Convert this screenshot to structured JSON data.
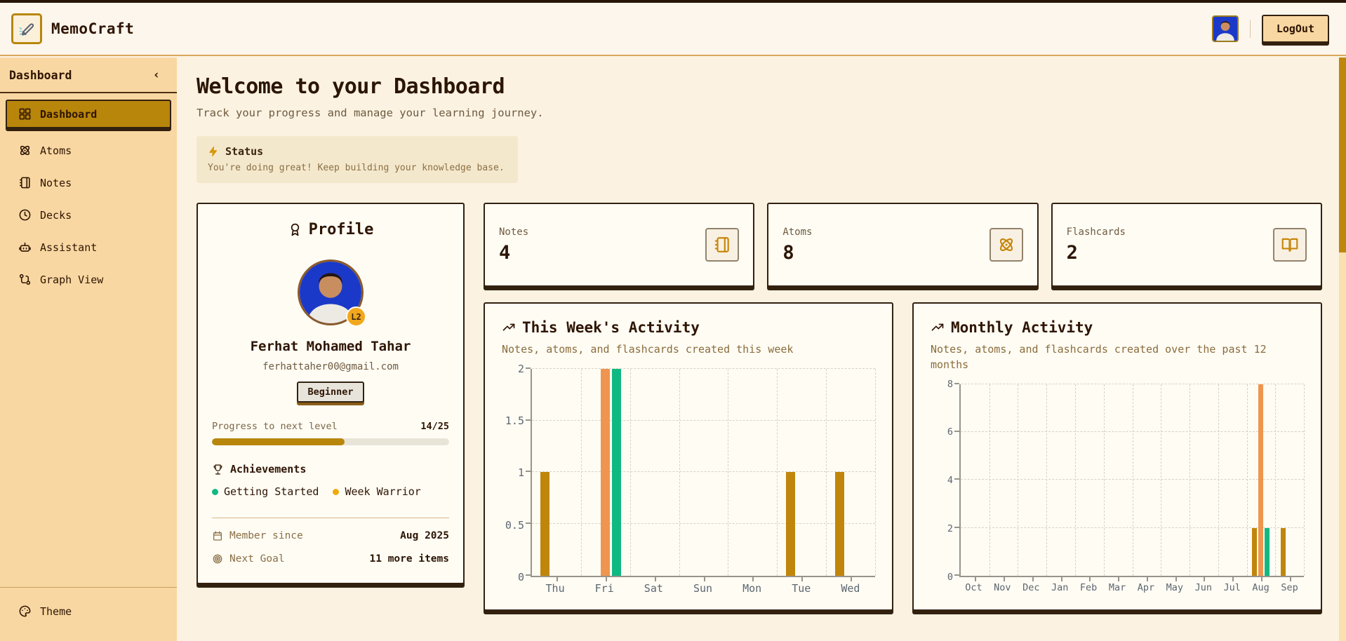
{
  "header": {
    "app_name": "MemoCraft",
    "logout_label": "LogOut"
  },
  "sidebar": {
    "title": "Dashboard",
    "collapse_icon": "‹",
    "items": [
      {
        "label": "Dashboard",
        "icon": "layout-grid",
        "active": true
      },
      {
        "label": "Atoms",
        "icon": "atom",
        "active": false
      },
      {
        "label": "Notes",
        "icon": "notebook",
        "active": false
      },
      {
        "label": "Decks",
        "icon": "clock",
        "active": false
      },
      {
        "label": "Assistant",
        "icon": "bot",
        "active": false
      },
      {
        "label": "Graph View",
        "icon": "graph",
        "active": false
      }
    ],
    "theme_label": "Theme"
  },
  "main": {
    "title": "Welcome to your Dashboard",
    "subtitle": "Track your progress and manage your learning journey.",
    "status": {
      "title": "Status",
      "message": "You're doing great! Keep building your knowledge base."
    }
  },
  "profile": {
    "card_title": "Profile",
    "level_badge": "L2",
    "name": "Ferhat Mohamed Tahar",
    "email": "ferhattaher00@gmail.com",
    "rank_badge": "Beginner",
    "progress_label": "Progress to next level",
    "progress_value": "14/25",
    "progress_percent": "56%",
    "achievements_title": "Achievements",
    "achievements": [
      {
        "label": "Getting Started",
        "color": "#10B981"
      },
      {
        "label": "Week Warrior",
        "color": "#EFA90D"
      }
    ],
    "member_since_label": "Member since",
    "member_since_value": "Aug 2025",
    "next_goal_label": "Next Goal",
    "next_goal_value": "11 more items"
  },
  "stats": [
    {
      "label": "Notes",
      "value": "4",
      "icon": "notebook"
    },
    {
      "label": "Atoms",
      "value": "8",
      "icon": "atom"
    },
    {
      "label": "Flashcards",
      "value": "2",
      "icon": "book-open"
    }
  ],
  "colors": {
    "accent_gold": "#B8860B",
    "bar_gold": "#C0860B",
    "bar_orange": "#EF954F",
    "bar_green": "#10B981",
    "sidebar_bg": "#F9D7A2",
    "card_bg": "#FFFCF4",
    "page_bg": "#FBF2E2",
    "border_dark": "#33210F"
  },
  "chart_data": [
    {
      "type": "bar",
      "title": "This Week's Activity",
      "subtitle": "Notes, atoms, and flashcards created this week",
      "categories": [
        "Thu",
        "Fri",
        "Sat",
        "Sun",
        "Mon",
        "Tue",
        "Wed"
      ],
      "series": [
        {
          "name": "notes",
          "color": "#C0860B",
          "values": [
            1,
            0,
            0,
            0,
            0,
            1,
            1
          ]
        },
        {
          "name": "atoms",
          "color": "#EF954F",
          "values": [
            0,
            2,
            0,
            0,
            0,
            0,
            0
          ]
        },
        {
          "name": "flashcards",
          "color": "#10B981",
          "values": [
            0,
            2,
            0,
            0,
            0,
            0,
            0
          ]
        }
      ],
      "xlabel": "",
      "ylabel": "",
      "ylim": [
        0,
        2
      ],
      "yticks": [
        0,
        0.5,
        1,
        1.5,
        2
      ],
      "grid": true,
      "legend": "none"
    },
    {
      "type": "bar",
      "title": "Monthly Activity",
      "subtitle": "Notes, atoms, and flashcards created over the past 12 months",
      "categories": [
        "Oct",
        "Nov",
        "Dec",
        "Jan",
        "Feb",
        "Mar",
        "Apr",
        "May",
        "Jun",
        "Jul",
        "Aug",
        "Sep"
      ],
      "series": [
        {
          "name": "notes",
          "color": "#C0860B",
          "values": [
            0,
            0,
            0,
            0,
            0,
            0,
            0,
            0,
            0,
            0,
            2,
            2
          ]
        },
        {
          "name": "atoms",
          "color": "#EF954F",
          "values": [
            0,
            0,
            0,
            0,
            0,
            0,
            0,
            0,
            0,
            0,
            8,
            0
          ]
        },
        {
          "name": "flashcards",
          "color": "#10B981",
          "values": [
            0,
            0,
            0,
            0,
            0,
            0,
            0,
            0,
            0,
            0,
            2,
            0
          ]
        }
      ],
      "xlabel": "",
      "ylabel": "",
      "ylim": [
        0,
        8
      ],
      "yticks": [
        0,
        2,
        4,
        6,
        8
      ],
      "grid": true,
      "legend": "none"
    }
  ]
}
